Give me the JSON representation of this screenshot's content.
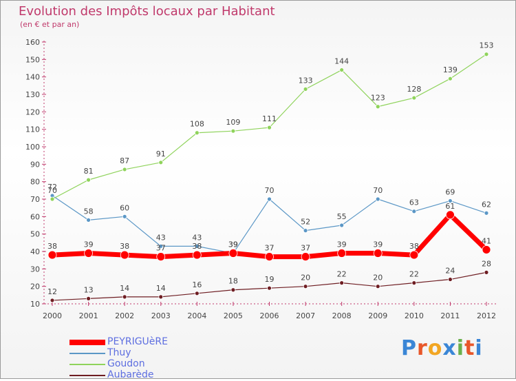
{
  "title": "Evolution des Impôts locaux par Habitant",
  "subtitle": "(en € et par an)",
  "logo": {
    "text": "Proxiti",
    "letters": [
      "P",
      "r",
      "o",
      "x",
      "i",
      "t",
      "i"
    ],
    "colors": [
      "#3a86d6",
      "#e8572a",
      "#f2a623",
      "#3a86d6",
      "#6ab04c",
      "#e8572a",
      "#3a86d6"
    ]
  },
  "chart_data": {
    "type": "line",
    "title": "Evolution des Impôts locaux par Habitant",
    "ylabel": "(en € et par an)",
    "xlabel": "",
    "x": [
      "2000",
      "2001",
      "2002",
      "2003",
      "2004",
      "2005",
      "2006",
      "2007",
      "2008",
      "2009",
      "2010",
      "2011",
      "2012"
    ],
    "ylim": [
      10,
      160
    ],
    "yticks": [
      "10",
      "20",
      "30",
      "40",
      "50",
      "60",
      "70",
      "80",
      "90",
      "100",
      "110",
      "120",
      "130",
      "140",
      "150",
      "160"
    ],
    "grid": false,
    "legend_position": "bottom-left",
    "series": [
      {
        "name": "Aubarède",
        "color": "#6e1d22",
        "labels": [
          "12",
          "13",
          "14",
          "14",
          "16",
          "18",
          "19",
          "20",
          "22",
          "20",
          "22",
          "24",
          "28"
        ],
        "values": [
          12,
          13,
          14,
          14,
          16,
          18,
          19,
          20,
          22,
          20,
          22,
          24,
          28
        ]
      },
      {
        "name": "Thuy",
        "color": "#5b97c6",
        "labels": [
          "72",
          "58",
          "60",
          "43",
          "43",
          "39",
          "70",
          "52",
          "55",
          "70",
          "63",
          "69",
          "62"
        ],
        "values": [
          72,
          58,
          60,
          43,
          43,
          39,
          70,
          52,
          55,
          70,
          63,
          69,
          62
        ]
      },
      {
        "name": "Goudon",
        "color": "#8fd35b",
        "labels": [
          "70",
          "81",
          "87",
          "91",
          "108",
          "109",
          "111",
          "133",
          "144",
          "123",
          "128",
          "139",
          "153"
        ],
        "values": [
          70,
          81,
          87,
          91,
          108,
          109,
          111,
          133,
          144,
          123,
          128,
          139,
          153
        ]
      },
      {
        "name": "PEYRIGUèRE",
        "color": "#ff0000",
        "labels": [
          "38",
          "39",
          "38",
          "37",
          "38",
          "39",
          "37",
          "37",
          "39",
          "39",
          "38",
          "61",
          "41"
        ],
        "values": [
          38,
          39,
          38,
          37,
          38,
          39,
          37,
          37,
          39,
          39,
          38,
          61,
          41
        ]
      }
    ],
    "legend": [
      {
        "name": "PEYRIGUèRE",
        "color": "#ff0000"
      },
      {
        "name": "Thuy",
        "color": "#5b97c6"
      },
      {
        "name": "Goudon",
        "color": "#8fd35b"
      },
      {
        "name": "Aubarède",
        "color": "#6e1d22"
      }
    ]
  }
}
